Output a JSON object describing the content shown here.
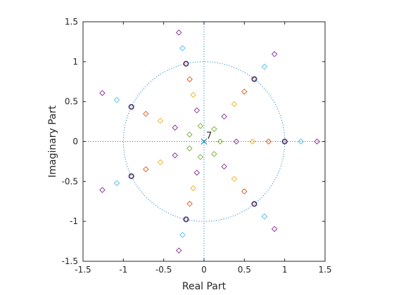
{
  "chart_data": {
    "type": "scatter",
    "title": "",
    "xlabel": "Real Part",
    "ylabel": "Imaginary Part",
    "xlim": [
      -1.5,
      1.5
    ],
    "ylim": [
      -1.5,
      1.5
    ],
    "xticks": [
      "-1.5",
      "-1",
      "-0.5",
      "0",
      "0.5",
      "1",
      "1.5"
    ],
    "yticks": [
      "-1.5",
      "-1",
      "-0.5",
      "0",
      "0.5",
      "1",
      "1.5"
    ],
    "unit_circle": true,
    "annotation": "7",
    "colors": {
      "axis": "#262626",
      "circle": "#0072bd",
      "s1": "#0072bd",
      "s2": "#d95319",
      "s3": "#edb120",
      "s4": "#7e2f8e",
      "s5": "#77ac30",
      "s6": "#4dbeee",
      "s7": "#a2142f"
    },
    "series": [
      {
        "color_key": "s1",
        "marker": "o",
        "points": [
          [
            1,
            0
          ],
          [
            0.623,
            0.782
          ],
          [
            -0.223,
            0.975
          ],
          [
            -0.901,
            0.434
          ],
          [
            -0.901,
            -0.434
          ],
          [
            -0.223,
            -0.975
          ],
          [
            0.623,
            -0.782
          ]
        ]
      },
      {
        "color_key": "s2",
        "marker": "diamond",
        "points": [
          [
            0.8,
            0
          ],
          [
            0.499,
            0.625
          ],
          [
            -0.178,
            0.78
          ],
          [
            -0.721,
            0.347
          ],
          [
            -0.721,
            -0.347
          ],
          [
            -0.178,
            -0.78
          ],
          [
            0.499,
            -0.625
          ]
        ]
      },
      {
        "color_key": "s3",
        "marker": "diamond",
        "points": [
          [
            0.6,
            0
          ],
          [
            0.374,
            0.469
          ],
          [
            -0.134,
            0.585
          ],
          [
            -0.541,
            0.26
          ],
          [
            -0.541,
            -0.26
          ],
          [
            -0.134,
            -0.585
          ],
          [
            0.374,
            -0.469
          ]
        ]
      },
      {
        "color_key": "s4",
        "marker": "diamond",
        "points": [
          [
            0.4,
            0
          ],
          [
            0.249,
            0.313
          ],
          [
            -0.089,
            0.39
          ],
          [
            -0.36,
            0.174
          ],
          [
            -0.36,
            -0.174
          ],
          [
            -0.089,
            -0.39
          ],
          [
            0.249,
            -0.313
          ],
          [
            1.4,
            0
          ],
          [
            0.873,
            1.095
          ],
          [
            -0.312,
            1.365
          ],
          [
            -1.261,
            0.607
          ],
          [
            -1.261,
            -0.607
          ],
          [
            -0.312,
            -1.365
          ],
          [
            0.873,
            -1.095
          ]
        ]
      },
      {
        "color_key": "s5",
        "marker": "diamond",
        "points": [
          [
            0.2,
            0
          ],
          [
            0.125,
            0.156
          ],
          [
            -0.045,
            0.195
          ],
          [
            -0.18,
            0.087
          ],
          [
            -0.18,
            -0.087
          ],
          [
            -0.045,
            -0.195
          ],
          [
            0.125,
            -0.156
          ]
        ]
      },
      {
        "color_key": "s6",
        "marker": "diamond",
        "points": [
          [
            1.2,
            0
          ],
          [
            0.748,
            0.938
          ],
          [
            -0.267,
            1.17
          ],
          [
            -1.081,
            0.521
          ],
          [
            -1.081,
            -0.521
          ],
          [
            -0.267,
            -1.17
          ],
          [
            0.748,
            -0.938
          ]
        ]
      },
      {
        "color_key": "s7",
        "marker": "diamond",
        "points": [
          [
            1.0,
            0
          ],
          [
            0.623,
            0.782
          ],
          [
            -0.223,
            0.975
          ],
          [
            -0.901,
            0.434
          ],
          [
            -0.901,
            -0.434
          ],
          [
            -0.223,
            -0.975
          ],
          [
            0.623,
            -0.782
          ]
        ]
      }
    ],
    "poles": [
      [
        0,
        0
      ]
    ]
  }
}
